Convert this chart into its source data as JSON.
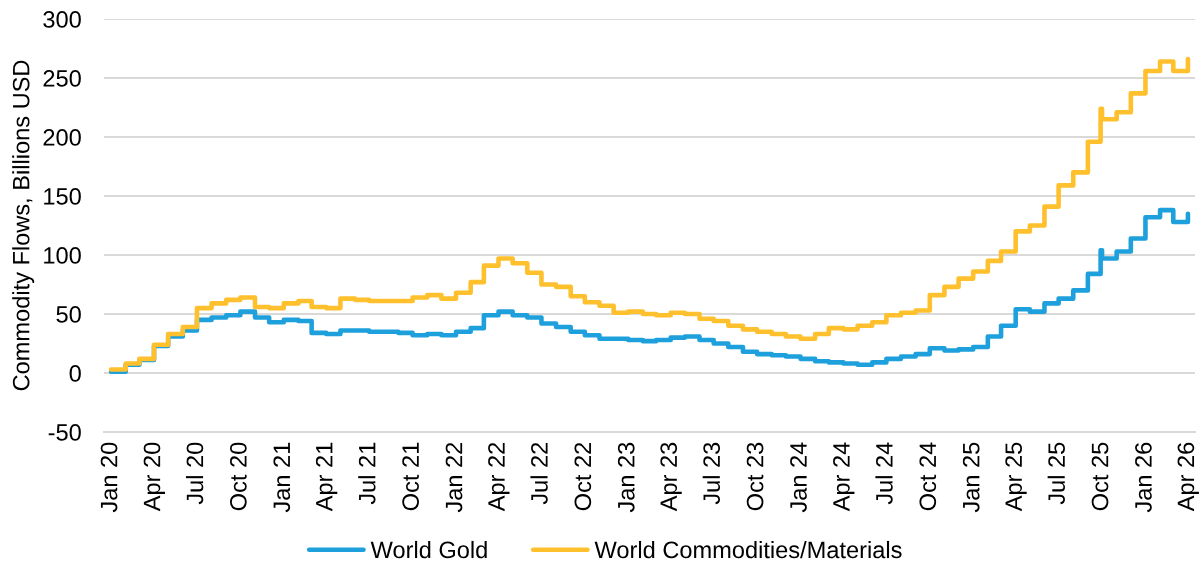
{
  "chart_data": {
    "type": "step",
    "ylabel": "Commodity Flows, Billions USD",
    "x": [
      "2020-01",
      "2020-02",
      "2020-03",
      "2020-04",
      "2020-05",
      "2020-06",
      "2020-07",
      "2020-08",
      "2020-09",
      "2020-10",
      "2020-11",
      "2020-12",
      "2021-01",
      "2021-02",
      "2021-03",
      "2021-04",
      "2021-05",
      "2021-06",
      "2021-07",
      "2021-08",
      "2021-09",
      "2021-10",
      "2021-11",
      "2021-12",
      "2022-01",
      "2022-02",
      "2022-03",
      "2022-04",
      "2022-05",
      "2022-06",
      "2022-07",
      "2022-08",
      "2022-09",
      "2022-10",
      "2022-11",
      "2022-12",
      "2023-01",
      "2023-02",
      "2023-03",
      "2023-04",
      "2023-05",
      "2023-06",
      "2023-07",
      "2023-08",
      "2023-09",
      "2023-10",
      "2023-11",
      "2023-12",
      "2024-01",
      "2024-02",
      "2024-03",
      "2024-04",
      "2024-05",
      "2024-06",
      "2024-07",
      "2024-08",
      "2024-09",
      "2024-10",
      "2024-11",
      "2024-12",
      "2025-01",
      "2025-02",
      "2025-03",
      "2025-04",
      "2025-05",
      "2025-06",
      "2025-07",
      "2025-08",
      "2025-09",
      "2025-09-28",
      "2025-10",
      "2025-11",
      "2025-12",
      "2026-01",
      "2026-02",
      "2026-03",
      "2026-04"
    ],
    "series": [
      {
        "name": "World Gold",
        "color": "#1ea0dc",
        "values": [
          1,
          7,
          11,
          23,
          31,
          36,
          45,
          47,
          49,
          52,
          47,
          43,
          45,
          44,
          34,
          33,
          36,
          36,
          35,
          35,
          34,
          32,
          33,
          32,
          35,
          38,
          49,
          52,
          49,
          47,
          42,
          39,
          35,
          32,
          29,
          29,
          28,
          27,
          28,
          30,
          31,
          28,
          25,
          22,
          18,
          16,
          15,
          14,
          12,
          10,
          9,
          8,
          7,
          9,
          12,
          14,
          16,
          21,
          19,
          20,
          22,
          31,
          40,
          54,
          52,
          59,
          63,
          70,
          84,
          104,
          97,
          103,
          114,
          132,
          138,
          128,
          135
        ]
      },
      {
        "name": "World Commodities/Materials",
        "color": "#fec02c",
        "values": [
          3,
          8,
          12,
          24,
          33,
          39,
          55,
          59,
          62,
          64,
          56,
          55,
          59,
          61,
          56,
          55,
          63,
          62,
          61,
          61,
          61,
          64,
          66,
          63,
          68,
          77,
          91,
          97,
          93,
          85,
          75,
          73,
          65,
          60,
          57,
          51,
          52,
          50,
          49,
          51,
          50,
          46,
          44,
          40,
          37,
          35,
          33,
          31,
          29,
          33,
          38,
          37,
          40,
          43,
          49,
          51,
          53,
          66,
          73,
          80,
          86,
          95,
          103,
          120,
          125,
          141,
          159,
          170,
          196,
          224,
          215,
          221,
          237,
          256,
          264,
          256,
          266
        ]
      }
    ],
    "xlim": [
      "2019-12-17",
      "2026-04-16"
    ],
    "xticks": [
      {
        "value": "2020-01",
        "label": "Jan 20"
      },
      {
        "value": "2020-04",
        "label": "Apr 20"
      },
      {
        "value": "2020-07",
        "label": "Jul 20"
      },
      {
        "value": "2020-10",
        "label": "Oct 20"
      },
      {
        "value": "2021-01",
        "label": "Jan 21"
      },
      {
        "value": "2021-04",
        "label": "Apr 21"
      },
      {
        "value": "2021-07",
        "label": "Jul 21"
      },
      {
        "value": "2021-10",
        "label": "Oct 21"
      },
      {
        "value": "2022-01",
        "label": "Jan 22"
      },
      {
        "value": "2022-04",
        "label": "Apr 22"
      },
      {
        "value": "2022-07",
        "label": "Jul 22"
      },
      {
        "value": "2022-10",
        "label": "Oct 22"
      },
      {
        "value": "2023-01",
        "label": "Jan 23"
      },
      {
        "value": "2023-04",
        "label": "Apr 23"
      },
      {
        "value": "2023-07",
        "label": "Jul 23"
      },
      {
        "value": "2023-10",
        "label": "Oct 23"
      },
      {
        "value": "2024-01",
        "label": "Jan 24"
      },
      {
        "value": "2024-04",
        "label": "Apr 24"
      },
      {
        "value": "2024-07",
        "label": "Jul 24"
      },
      {
        "value": "2024-10",
        "label": "Oct 24"
      },
      {
        "value": "2025-01",
        "label": "Jan 25"
      },
      {
        "value": "2025-04",
        "label": "Apr 25"
      },
      {
        "value": "2025-07",
        "label": "Jul 25"
      },
      {
        "value": "2025-10",
        "label": "Oct 25"
      },
      {
        "value": "2026-01",
        "label": "Jan 26"
      },
      {
        "value": "2026-04",
        "label": "Apr 26"
      }
    ],
    "ylim": [
      -50,
      300
    ],
    "yticks": [
      -50,
      0,
      50,
      100,
      150,
      200,
      250,
      300
    ],
    "grid": "y",
    "legend": "bottom",
    "marker": "none",
    "line_style": "solid"
  }
}
